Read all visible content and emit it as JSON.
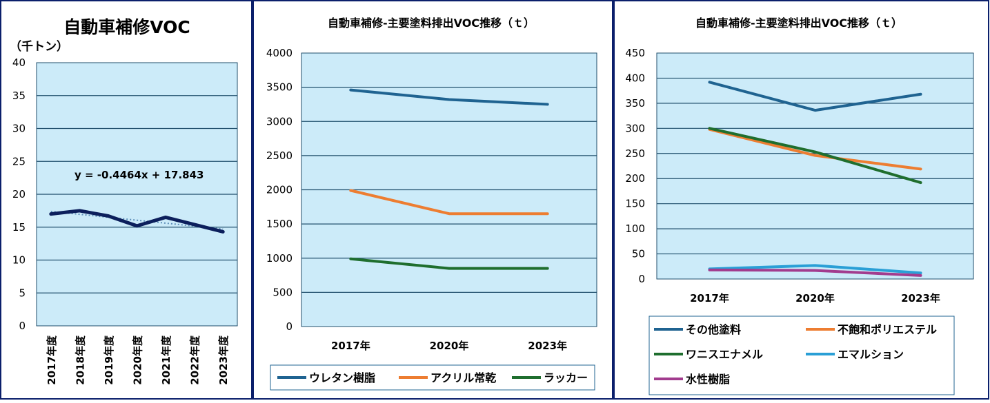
{
  "chart_data": [
    {
      "type": "line",
      "title": "自動車補修VOC",
      "unit_label": "（千トン）",
      "categories": [
        "2017年度",
        "2018年度",
        "2019年度",
        "2020年度",
        "2021年度",
        "2022年度",
        "2023年度"
      ],
      "series": [
        {
          "values": [
            17.0,
            17.5,
            16.7,
            15.2,
            16.5,
            15.4,
            14.3
          ]
        }
      ],
      "trendline": {
        "style": "dotted",
        "equation": "y = -0.4464x + 17.843",
        "slope": -0.4464,
        "intercept": 17.843
      },
      "ylim": [
        0,
        40
      ],
      "yticks": [
        0,
        5,
        10,
        15,
        20,
        25,
        30,
        35,
        40
      ],
      "grid": true,
      "legend": "none"
    },
    {
      "type": "line",
      "title": "自動車補修-主要塗料排出VOC推移（ｔ）",
      "categories": [
        "2017年",
        "2020年",
        "2023年"
      ],
      "series": [
        {
          "name": "ウレタン樹脂",
          "color": "#1F6391",
          "values": [
            3460,
            3320,
            3250
          ]
        },
        {
          "name": "アクリル常乾",
          "color": "#ED7D31",
          "values": [
            1990,
            1650,
            1650
          ]
        },
        {
          "name": "ラッカー",
          "color": "#1F6E2E",
          "values": [
            990,
            850,
            850
          ]
        }
      ],
      "ylim": [
        0,
        4000
      ],
      "yticks": [
        0,
        500,
        1000,
        1500,
        2000,
        2500,
        3000,
        3500,
        4000
      ],
      "grid": true,
      "legend": "bottom"
    },
    {
      "type": "line",
      "title": "自動車補修-主要塗料排出VOC推移（ｔ）",
      "categories": [
        "2017年",
        "2020年",
        "2023年"
      ],
      "series": [
        {
          "name": "その他塗料",
          "color": "#1F6391",
          "values": [
            392,
            336,
            368
          ]
        },
        {
          "name": "不飽和ポリエステル",
          "color": "#ED7D31",
          "values": [
            298,
            246,
            219
          ]
        },
        {
          "name": "ワニスエナメル",
          "color": "#1F6E2E",
          "values": [
            300,
            253,
            192
          ]
        },
        {
          "name": "エマルション",
          "color": "#2A9FD6",
          "values": [
            20,
            27,
            12
          ]
        },
        {
          "name": "水性樹脂",
          "color": "#A23C8E",
          "values": [
            18,
            17,
            7
          ]
        }
      ],
      "ylim": [
        0,
        450
      ],
      "yticks": [
        0,
        50,
        100,
        150,
        200,
        250,
        300,
        350,
        400,
        450
      ],
      "grid": true,
      "legend": "bottom"
    }
  ],
  "colors": {
    "frame": "#0B1F6B",
    "plot_bg": "#CCEBF9",
    "grid": "#1F4E6B",
    "chart1_line": "#0C1F5C",
    "chart1_trend": "#5B8DB8"
  }
}
